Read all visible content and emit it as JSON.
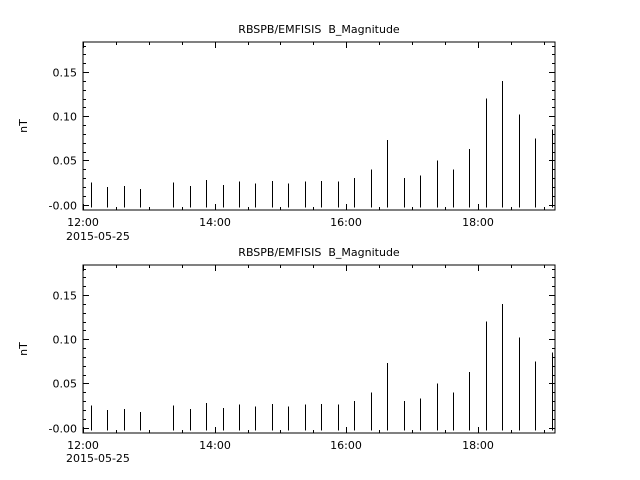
{
  "window": {
    "background": "#ffffff",
    "foreground": "#000000"
  },
  "chart_data": [
    {
      "type": "bar",
      "title": "RBSPB/EMFISIS  B_Magnitude",
      "ylabel": "nT",
      "xlabel": "",
      "date_label": "2015-05-25",
      "grid": false,
      "bar_color": "#000000",
      "xlim": [
        12.0,
        19.17
      ],
      "ylim": [
        -0.006,
        0.184
      ],
      "baseline": -0.003,
      "xticks": [
        {
          "h": 12,
          "label": "12:00"
        },
        {
          "h": 14,
          "label": "14:00"
        },
        {
          "h": 16,
          "label": "16:00"
        },
        {
          "h": 18,
          "label": "18:00"
        }
      ],
      "yticks": [
        {
          "v": 0.15,
          "label": "0.15"
        },
        {
          "v": 0.1,
          "label": "0.10"
        },
        {
          "v": 0.05,
          "label": "0.05"
        },
        {
          "v": 0.0,
          "label": "-0.00"
        }
      ],
      "x_hours": [
        12.12,
        12.37,
        12.62,
        12.87,
        13.37,
        13.62,
        13.87,
        14.12,
        14.37,
        14.62,
        14.87,
        15.12,
        15.37,
        15.62,
        15.87,
        16.12,
        16.37,
        16.62,
        16.87,
        17.12,
        17.37,
        17.62,
        17.87,
        18.12,
        18.37,
        18.62,
        18.87,
        19.12
      ],
      "values": [
        0.025,
        0.02,
        0.021,
        0.018,
        0.025,
        0.021,
        0.028,
        0.022,
        0.026,
        0.024,
        0.027,
        0.024,
        0.026,
        0.027,
        0.026,
        0.03,
        0.04,
        0.073,
        0.03,
        0.033,
        0.05,
        0.04,
        0.063,
        0.12,
        0.14,
        0.102,
        0.075,
        0.085
      ]
    },
    {
      "type": "bar",
      "title": "RBSPB/EMFISIS  B_Magnitude",
      "ylabel": "nT",
      "xlabel": "",
      "date_label": "2015-05-25",
      "grid": false,
      "bar_color": "#000000",
      "xlim": [
        12.0,
        19.17
      ],
      "ylim": [
        -0.006,
        0.184
      ],
      "baseline": -0.003,
      "xticks": [
        {
          "h": 12,
          "label": "12:00"
        },
        {
          "h": 14,
          "label": "14:00"
        },
        {
          "h": 16,
          "label": "16:00"
        },
        {
          "h": 18,
          "label": "18:00"
        }
      ],
      "yticks": [
        {
          "v": 0.15,
          "label": "0.15"
        },
        {
          "v": 0.1,
          "label": "0.10"
        },
        {
          "v": 0.05,
          "label": "0.05"
        },
        {
          "v": 0.0,
          "label": "-0.00"
        }
      ],
      "x_hours": [
        12.12,
        12.37,
        12.62,
        12.87,
        13.37,
        13.62,
        13.87,
        14.12,
        14.37,
        14.62,
        14.87,
        15.12,
        15.37,
        15.62,
        15.87,
        16.12,
        16.37,
        16.62,
        16.87,
        17.12,
        17.37,
        17.62,
        17.87,
        18.12,
        18.37,
        18.62,
        18.87,
        19.12
      ],
      "values": [
        0.025,
        0.02,
        0.021,
        0.018,
        0.025,
        0.021,
        0.028,
        0.022,
        0.026,
        0.024,
        0.027,
        0.024,
        0.026,
        0.027,
        0.026,
        0.03,
        0.04,
        0.073,
        0.03,
        0.033,
        0.05,
        0.04,
        0.063,
        0.12,
        0.14,
        0.102,
        0.075,
        0.085
      ]
    }
  ]
}
